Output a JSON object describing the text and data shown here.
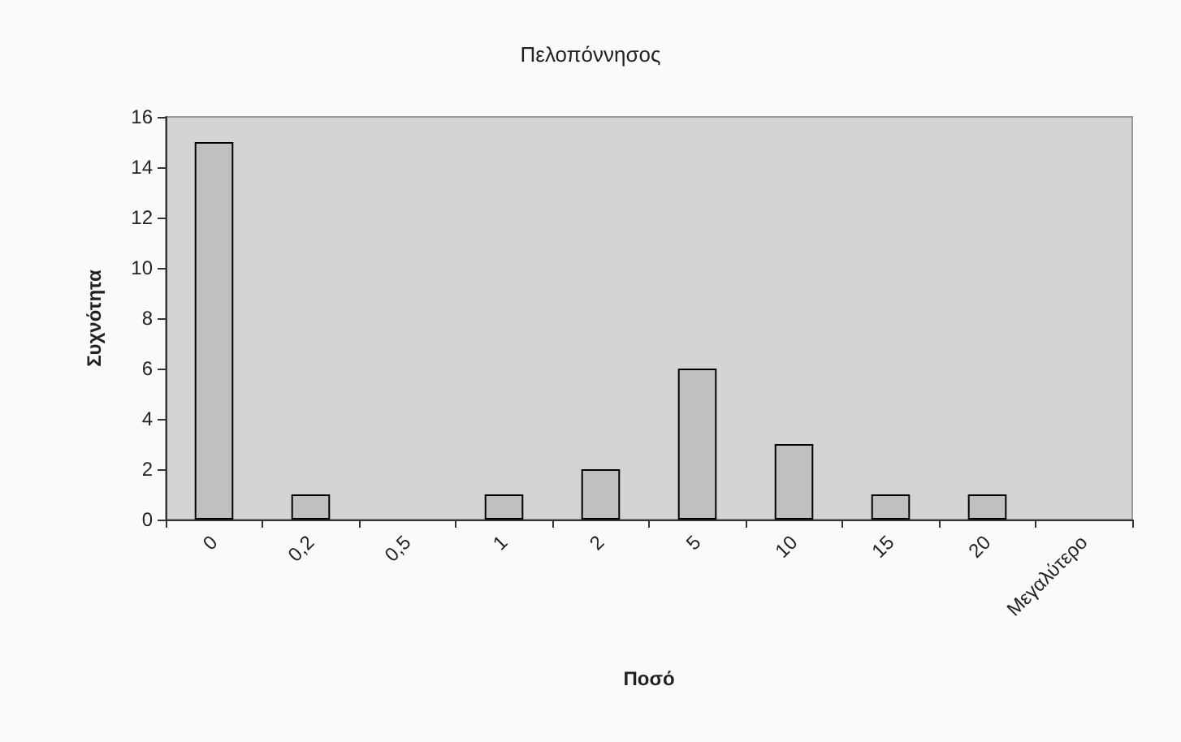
{
  "chart_data": {
    "type": "bar",
    "title": "Πελοπόννησος",
    "xlabel": "Ποσό",
    "ylabel": "Συχνότητα",
    "categories": [
      "0",
      "0,2",
      "0,5",
      "1",
      "2",
      "5",
      "10",
      "15",
      "20",
      "Μεγαλύτερο"
    ],
    "values": [
      15,
      1,
      0,
      1,
      2,
      6,
      3,
      1,
      1,
      0
    ],
    "color": "#c0c0c0",
    "ylim": [
      0,
      16
    ],
    "yticks": [
      0,
      2,
      4,
      6,
      8,
      10,
      12,
      14,
      16
    ],
    "grid": false
  }
}
